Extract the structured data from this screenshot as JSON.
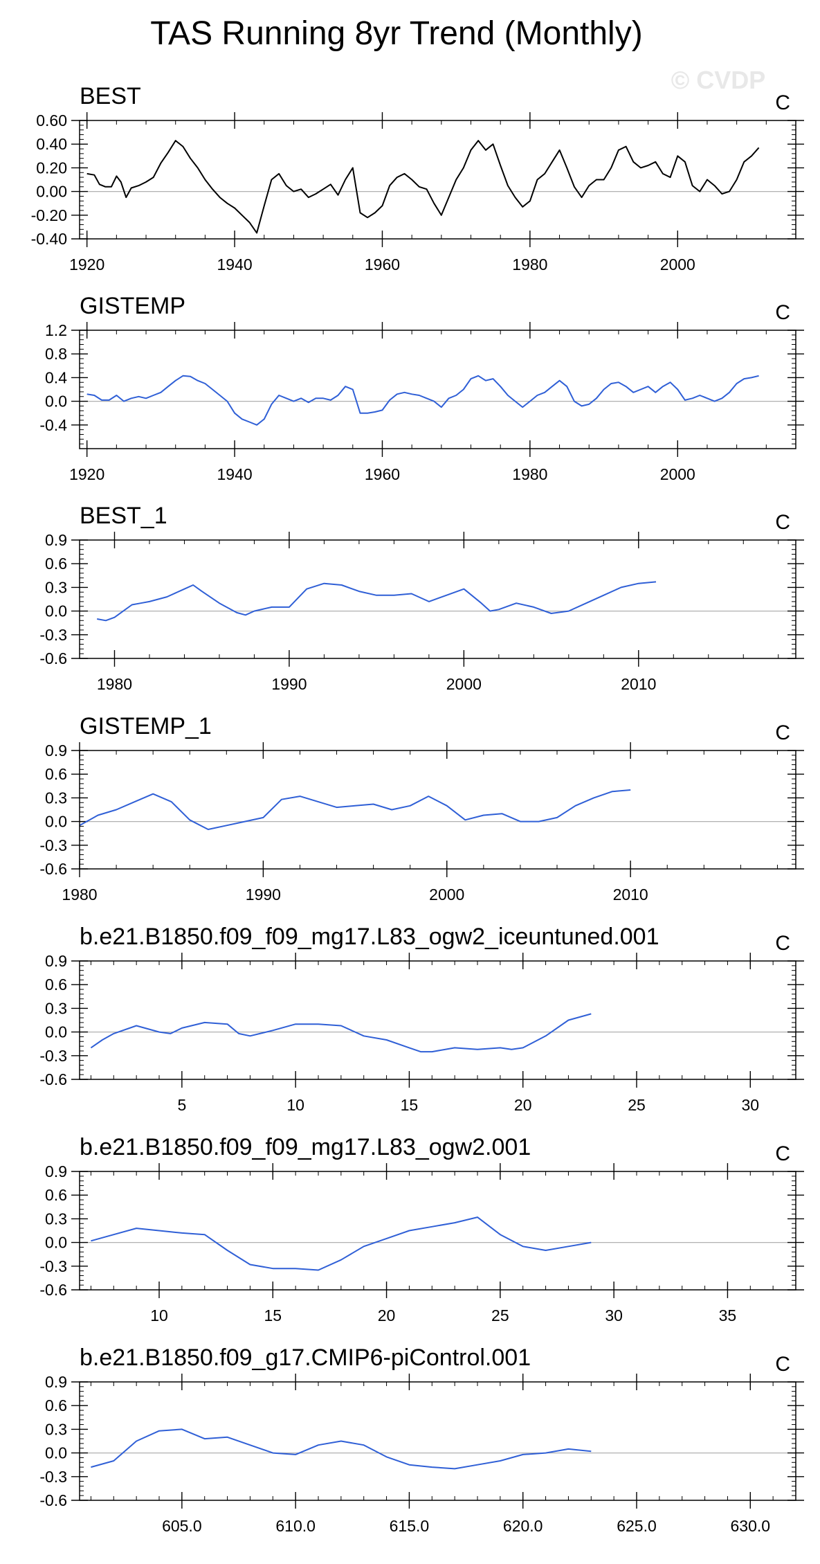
{
  "figure": {
    "title": "TAS Running 8yr Trend (Monthly)",
    "watermark": "© CVDP",
    "colors": {
      "black": "#000000",
      "blue": "#2f5fd6",
      "zero_line": "#b0b0b0"
    }
  },
  "chart_data": [
    {
      "type": "line",
      "title": "BEST",
      "units": "C",
      "color": "#000000",
      "xlim": [
        1919,
        2016
      ],
      "ylim": [
        -0.4,
        0.6
      ],
      "xticks": [
        1920,
        1940,
        1960,
        1980,
        2000
      ],
      "xtick_labels": [
        "1920",
        "1940",
        "1960",
        "1980",
        "2000"
      ],
      "yticks": [
        -0.4,
        -0.2,
        0.0,
        0.2,
        0.4,
        0.6
      ],
      "ytick_labels": [
        "-0.40",
        "-0.20",
        "0.00",
        "0.20",
        "0.40",
        "0.60"
      ],
      "x": [
        1920,
        1921,
        1921.7,
        1922.5,
        1923.3,
        1924,
        1924.6,
        1925.3,
        1926,
        1927,
        1928,
        1929,
        1930,
        1931,
        1932,
        1933,
        1934,
        1935,
        1936,
        1937,
        1938,
        1939,
        1940,
        1941,
        1942,
        1943,
        1944,
        1945,
        1946,
        1947,
        1948,
        1949,
        1950,
        1951,
        1952,
        1953,
        1954,
        1955,
        1956,
        1957,
        1958,
        1959,
        1960,
        1961,
        1962,
        1963,
        1964,
        1965,
        1966,
        1967,
        1968,
        1969,
        1970,
        1971,
        1972,
        1973,
        1974,
        1975,
        1976,
        1977,
        1978,
        1979,
        1980,
        1981,
        1982,
        1983,
        1984,
        1985,
        1986,
        1987,
        1988,
        1989,
        1990,
        1991,
        1992,
        1993,
        1994,
        1995,
        1996,
        1997,
        1998,
        1999,
        2000,
        2001,
        2002,
        2003,
        2004,
        2005,
        2006,
        2007,
        2008,
        2009,
        2010,
        2011
      ],
      "series": [
        {
          "name": "BEST",
          "values": [
            0.15,
            0.14,
            0.06,
            0.04,
            0.04,
            0.13,
            0.08,
            -0.05,
            0.03,
            0.05,
            0.08,
            0.12,
            0.24,
            0.33,
            0.43,
            0.38,
            0.28,
            0.2,
            0.1,
            0.02,
            -0.05,
            -0.1,
            -0.14,
            -0.2,
            -0.26,
            -0.35,
            -0.12,
            0.1,
            0.15,
            0.05,
            0.0,
            0.02,
            -0.05,
            -0.02,
            0.02,
            0.06,
            -0.03,
            0.1,
            0.2,
            -0.18,
            -0.22,
            -0.18,
            -0.12,
            0.05,
            0.12,
            0.15,
            0.1,
            0.04,
            0.02,
            -0.1,
            -0.2,
            -0.05,
            0.1,
            0.2,
            0.35,
            0.43,
            0.35,
            0.4,
            0.22,
            0.05,
            -0.05,
            -0.13,
            -0.08,
            0.1,
            0.15,
            0.25,
            0.35,
            0.2,
            0.04,
            -0.05,
            0.05,
            0.1,
            0.1,
            0.2,
            0.35,
            0.38,
            0.25,
            0.2,
            0.22,
            0.25,
            0.15,
            0.12,
            0.3,
            0.25,
            0.05,
            0.0,
            0.1,
            0.05,
            -0.02,
            0.0,
            0.1,
            0.25,
            0.3,
            0.37
          ]
        }
      ]
    },
    {
      "type": "line",
      "title": "GISTEMP",
      "units": "C",
      "color": "#2f5fd6",
      "xlim": [
        1919,
        2016
      ],
      "ylim": [
        -0.8,
        1.2
      ],
      "xticks": [
        1920,
        1940,
        1960,
        1980,
        2000
      ],
      "xtick_labels": [
        "1920",
        "1940",
        "1960",
        "1980",
        "2000"
      ],
      "yticks": [
        -0.4,
        0.0,
        0.4,
        0.8,
        1.2
      ],
      "ytick_labels": [
        "-0.4",
        "0.0",
        "0.4",
        "0.8",
        "1.2"
      ],
      "x": [
        1920,
        1921,
        1922,
        1923,
        1924,
        1925,
        1926,
        1927,
        1928,
        1929,
        1930,
        1931,
        1932,
        1933,
        1934,
        1935,
        1936,
        1937,
        1938,
        1939,
        1940,
        1941,
        1942,
        1943,
        1944,
        1945,
        1946,
        1947,
        1948,
        1949,
        1950,
        1951,
        1952,
        1953,
        1954,
        1955,
        1956,
        1957,
        1958,
        1959,
        1960,
        1961,
        1962,
        1963,
        1964,
        1965,
        1966,
        1967,
        1968,
        1969,
        1970,
        1971,
        1972,
        1973,
        1974,
        1975,
        1976,
        1977,
        1978,
        1979,
        1980,
        1981,
        1982,
        1983,
        1984,
        1985,
        1986,
        1987,
        1988,
        1989,
        1990,
        1991,
        1992,
        1993,
        1994,
        1995,
        1996,
        1997,
        1998,
        1999,
        2000,
        2001,
        2002,
        2003,
        2004,
        2005,
        2006,
        2007,
        2008,
        2009,
        2010,
        2011
      ],
      "series": [
        {
          "name": "GISTEMP",
          "values": [
            0.12,
            0.1,
            0.02,
            0.02,
            0.1,
            0.0,
            0.05,
            0.08,
            0.05,
            0.1,
            0.15,
            0.25,
            0.35,
            0.43,
            0.42,
            0.35,
            0.3,
            0.2,
            0.1,
            0.0,
            -0.2,
            -0.3,
            -0.35,
            -0.4,
            -0.3,
            -0.05,
            0.1,
            0.05,
            0.0,
            0.05,
            -0.02,
            0.05,
            0.05,
            0.02,
            0.1,
            0.25,
            0.2,
            -0.2,
            -0.2,
            -0.18,
            -0.15,
            0.02,
            0.12,
            0.15,
            0.12,
            0.1,
            0.05,
            0.0,
            -0.1,
            0.05,
            0.1,
            0.2,
            0.38,
            0.43,
            0.35,
            0.38,
            0.25,
            0.1,
            0.0,
            -0.1,
            0.0,
            0.1,
            0.15,
            0.25,
            0.35,
            0.25,
            0.0,
            -0.08,
            -0.05,
            0.05,
            0.2,
            0.3,
            0.32,
            0.25,
            0.15,
            0.2,
            0.25,
            0.15,
            0.25,
            0.32,
            0.2,
            0.02,
            0.05,
            0.1,
            0.05,
            0.0,
            0.05,
            0.15,
            0.3,
            0.38,
            0.4,
            0.43
          ]
        }
      ]
    },
    {
      "type": "line",
      "title": "BEST_1",
      "units": "C",
      "color": "#2f5fd6",
      "xlim": [
        1978,
        2019
      ],
      "ylim": [
        -0.6,
        0.9
      ],
      "xticks": [
        1980,
        1990,
        2000,
        2010
      ],
      "xtick_labels": [
        "1980",
        "1990",
        "2000",
        "2010"
      ],
      "yticks": [
        -0.6,
        -0.3,
        0.0,
        0.3,
        0.6,
        0.9
      ],
      "ytick_labels": [
        "-0.6",
        "-0.3",
        "0.0",
        "0.3",
        "0.6",
        "0.9"
      ],
      "x": [
        1979,
        1979.5,
        1980,
        1980.5,
        1981,
        1981.5,
        1982,
        1983,
        1984,
        1984.5,
        1985,
        1986,
        1987,
        1987.5,
        1988,
        1989,
        1990,
        1991,
        1992,
        1993,
        1994,
        1995,
        1996,
        1997,
        1998,
        1999,
        2000,
        2001,
        2001.5,
        2002,
        2003,
        2004,
        2005,
        2006,
        2007,
        2008,
        2009,
        2010,
        2011
      ],
      "series": [
        {
          "name": "BEST_1",
          "values": [
            -0.1,
            -0.12,
            -0.08,
            0.0,
            0.08,
            0.1,
            0.12,
            0.18,
            0.28,
            0.33,
            0.25,
            0.1,
            -0.02,
            -0.05,
            0.0,
            0.05,
            0.05,
            0.28,
            0.35,
            0.33,
            0.25,
            0.2,
            0.2,
            0.22,
            0.12,
            0.2,
            0.28,
            0.1,
            0.0,
            0.02,
            0.1,
            0.05,
            -0.03,
            0.0,
            0.1,
            0.2,
            0.3,
            0.35,
            0.37
          ]
        }
      ]
    },
    {
      "type": "line",
      "title": "GISTEMP_1",
      "units": "C",
      "color": "#2f5fd6",
      "xlim": [
        1980,
        2019
      ],
      "ylim": [
        -0.6,
        0.9
      ],
      "xticks": [
        1980,
        1990,
        2000,
        2010
      ],
      "xtick_labels": [
        "1980",
        "1990",
        "2000",
        "2010"
      ],
      "yticks": [
        -0.6,
        -0.3,
        0.0,
        0.3,
        0.6,
        0.9
      ],
      "ytick_labels": [
        "-0.6",
        "-0.3",
        "0.0",
        "0.3",
        "0.6",
        "0.9"
      ],
      "x": [
        1980,
        1981,
        1982,
        1983,
        1984,
        1985,
        1986,
        1987,
        1988,
        1989,
        1990,
        1991,
        1992,
        1993,
        1994,
        1995,
        1996,
        1997,
        1998,
        1999,
        2000,
        2001,
        2002,
        2003,
        2004,
        2005,
        2006,
        2007,
        2008,
        2009,
        2010
      ],
      "series": [
        {
          "name": "GISTEMP_1",
          "values": [
            -0.05,
            0.08,
            0.15,
            0.25,
            0.35,
            0.25,
            0.02,
            -0.1,
            -0.05,
            0.0,
            0.05,
            0.28,
            0.32,
            0.25,
            0.18,
            0.2,
            0.22,
            0.15,
            0.2,
            0.32,
            0.2,
            0.02,
            0.08,
            0.1,
            0.0,
            0.0,
            0.05,
            0.2,
            0.3,
            0.38,
            0.4
          ]
        }
      ]
    },
    {
      "type": "line",
      "title": "b.e21.B1850.f09_f09_mg17.L83_ogw2_iceuntuned.001",
      "units": "C",
      "color": "#2f5fd6",
      "xlim": [
        0.5,
        32
      ],
      "ylim": [
        -0.6,
        0.9
      ],
      "xticks": [
        5,
        10,
        15,
        20,
        25,
        30
      ],
      "xtick_labels": [
        "5",
        "10",
        "15",
        "20",
        "25",
        "30"
      ],
      "yticks": [
        -0.6,
        -0.3,
        0.0,
        0.3,
        0.6,
        0.9
      ],
      "ytick_labels": [
        "-0.6",
        "-0.3",
        "0.0",
        "0.3",
        "0.6",
        "0.9"
      ],
      "x": [
        1,
        1.5,
        2,
        3,
        4,
        4.5,
        5,
        6,
        7,
        7.5,
        8,
        9,
        10,
        11,
        12,
        13,
        14,
        15,
        15.5,
        16,
        17,
        18,
        19,
        19.5,
        20,
        21,
        22,
        23
      ],
      "series": [
        {
          "name": "iceuntuned",
          "values": [
            -0.2,
            -0.1,
            -0.02,
            0.08,
            0.0,
            -0.02,
            0.05,
            0.12,
            0.1,
            -0.02,
            -0.05,
            0.02,
            0.1,
            0.1,
            0.08,
            -0.05,
            -0.1,
            -0.2,
            -0.25,
            -0.25,
            -0.2,
            -0.22,
            -0.2,
            -0.22,
            -0.2,
            -0.05,
            0.15,
            0.23
          ]
        }
      ]
    },
    {
      "type": "line",
      "title": "b.e21.B1850.f09_f09_mg17.L83_ogw2.001",
      "units": "C",
      "color": "#2f5fd6",
      "xlim": [
        6.5,
        38
      ],
      "ylim": [
        -0.6,
        0.9
      ],
      "xticks": [
        10,
        15,
        20,
        25,
        30,
        35
      ],
      "xtick_labels": [
        "10",
        "15",
        "20",
        "25",
        "30",
        "35"
      ],
      "yticks": [
        -0.6,
        -0.3,
        0.0,
        0.3,
        0.6,
        0.9
      ],
      "ytick_labels": [
        "-0.6",
        "-0.3",
        "0.0",
        "0.3",
        "0.6",
        "0.9"
      ],
      "x": [
        7,
        8,
        9,
        10,
        11,
        12,
        13,
        14,
        15,
        16,
        17,
        18,
        19,
        20,
        21,
        22,
        23,
        24,
        25,
        26,
        27,
        28,
        29
      ],
      "series": [
        {
          "name": "ogw2",
          "values": [
            0.02,
            0.1,
            0.18,
            0.15,
            0.12,
            0.1,
            -0.1,
            -0.28,
            -0.33,
            -0.33,
            -0.35,
            -0.22,
            -0.05,
            0.05,
            0.15,
            0.2,
            0.25,
            0.32,
            0.1,
            -0.05,
            -0.1,
            -0.05,
            0.0
          ]
        }
      ]
    },
    {
      "type": "line",
      "title": "b.e21.B1850.f09_g17.CMIP6-piControl.001",
      "units": "C",
      "color": "#2f5fd6",
      "xlim": [
        600.5,
        632
      ],
      "ylim": [
        -0.6,
        0.9
      ],
      "xticks": [
        605,
        610,
        615,
        620,
        625,
        630
      ],
      "xtick_labels": [
        "605.0",
        "610.0",
        "615.0",
        "620.0",
        "625.0",
        "630.0"
      ],
      "yticks": [
        -0.6,
        -0.3,
        0.0,
        0.3,
        0.6,
        0.9
      ],
      "ytick_labels": [
        "-0.6",
        "-0.3",
        "0.0",
        "0.3",
        "0.6",
        "0.9"
      ],
      "x": [
        601,
        602,
        603,
        604,
        605,
        606,
        607,
        608,
        609,
        610,
        611,
        612,
        613,
        614,
        615,
        616,
        617,
        618,
        619,
        620,
        621,
        622,
        623
      ],
      "series": [
        {
          "name": "piControl",
          "values": [
            -0.18,
            -0.1,
            0.15,
            0.28,
            0.3,
            0.18,
            0.2,
            0.1,
            0.0,
            -0.02,
            0.1,
            0.15,
            0.1,
            -0.05,
            -0.15,
            -0.18,
            -0.2,
            -0.15,
            -0.1,
            -0.02,
            0.0,
            0.05,
            0.02
          ]
        }
      ]
    }
  ]
}
